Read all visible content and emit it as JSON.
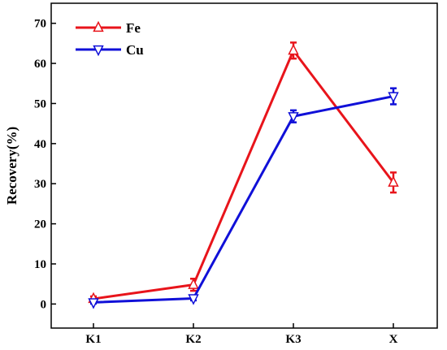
{
  "chart_data": {
    "type": "line",
    "categories": [
      "K1",
      "K2",
      "K3",
      "X"
    ],
    "ylabel": "Recovery(%)",
    "xlabel": "",
    "ylim": [
      -6,
      75
    ],
    "yticks": [
      0,
      10,
      20,
      30,
      40,
      50,
      60,
      70
    ],
    "grid": false,
    "legend_position": "top-left",
    "series": [
      {
        "name": "Fe",
        "color": "#e8141b",
        "marker": "triangle-up-open",
        "values": [
          1.3,
          4.8,
          63.2,
          30.3
        ],
        "errors": [
          0.6,
          1.5,
          2.0,
          2.5
        ]
      },
      {
        "name": "Cu",
        "color": "#1010d8",
        "marker": "triangle-down-open",
        "values": [
          0.4,
          1.4,
          46.8,
          51.8
        ],
        "errors": [
          0.3,
          0.5,
          1.5,
          2.0
        ]
      }
    ]
  }
}
